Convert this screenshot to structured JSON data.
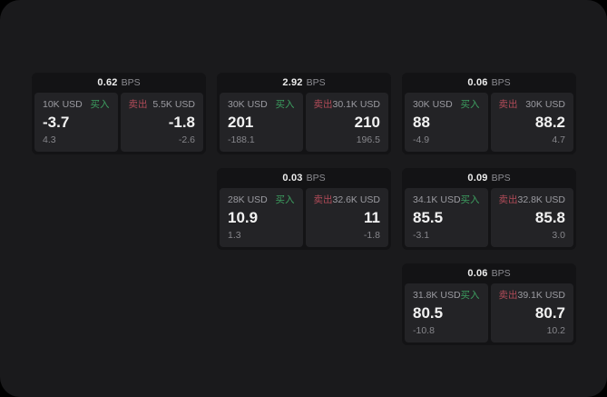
{
  "labels": {
    "bps_unit": "BPS",
    "buy": "买入",
    "sell": "卖出"
  },
  "colors": {
    "bg": "#000000",
    "page": "#1a1a1c",
    "card": "#131315",
    "panel": "#232326",
    "buy": "#3d9f60",
    "sell": "#b04b58",
    "text_primary": "#f2f2f2",
    "text_secondary": "#9b9ba1",
    "text_muted": "#86868b"
  },
  "cards": [
    {
      "bps": "0.62",
      "buy": {
        "amount": "10K USD",
        "price": "-3.7",
        "delta": "4.3"
      },
      "sell": {
        "amount": "5.5K USD",
        "price": "-1.8",
        "delta": "-2.6"
      }
    },
    {
      "bps": "2.92",
      "buy": {
        "amount": "30K USD",
        "price": "201",
        "delta": "-188.1"
      },
      "sell": {
        "amount": "30.1K USD",
        "price": "210",
        "delta": "196.5"
      }
    },
    {
      "bps": "0.06",
      "buy": {
        "amount": "30K USD",
        "price": "88",
        "delta": "-4.9"
      },
      "sell": {
        "amount": "30K USD",
        "price": "88.2",
        "delta": "4.7"
      }
    },
    {
      "bps": "0.03",
      "buy": {
        "amount": "28K USD",
        "price": "10.9",
        "delta": "1.3"
      },
      "sell": {
        "amount": "32.6K USD",
        "price": "11",
        "delta": "-1.8"
      }
    },
    {
      "bps": "0.09",
      "buy": {
        "amount": "34.1K USD",
        "price": "85.5",
        "delta": "-3.1"
      },
      "sell": {
        "amount": "32.8K USD",
        "price": "85.8",
        "delta": "3.0"
      }
    },
    {
      "bps": "0.06",
      "buy": {
        "amount": "31.8K USD",
        "price": "80.5",
        "delta": "-10.8"
      },
      "sell": {
        "amount": "39.1K USD",
        "price": "80.7",
        "delta": "10.2"
      }
    }
  ]
}
